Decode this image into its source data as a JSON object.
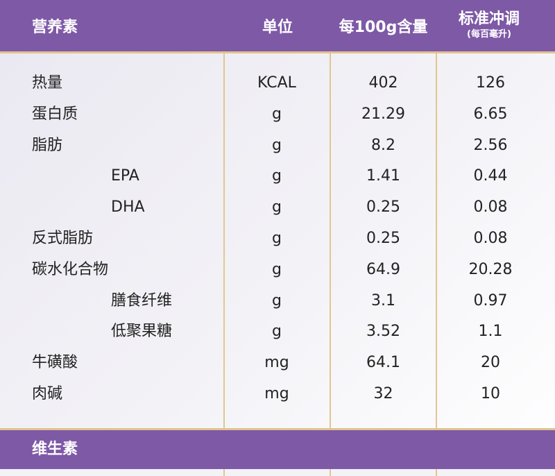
{
  "header": {
    "col_nutrient": "营养素",
    "col_unit": "单位",
    "col_per100": "每100g含量",
    "col_standard": "标准冲调",
    "col_standard_sub": "(每百毫升)"
  },
  "rows": [
    {
      "name": "热量",
      "unit": "KCAL",
      "per100": "402",
      "standard": "126"
    },
    {
      "name": "蛋白质",
      "unit": "g",
      "per100": "21.29",
      "standard": "6.65"
    },
    {
      "name": "脂肪",
      "unit": "g",
      "per100": "8.2",
      "standard": "2.56"
    },
    {
      "name": "EPA",
      "unit": "g",
      "per100": "1.41",
      "standard": "0.44"
    },
    {
      "name": "DHA",
      "unit": "g",
      "per100": "0.25",
      "standard": "0.08"
    },
    {
      "name": "反式脂肪",
      "unit": "g",
      "per100": "0.25",
      "standard": "0.08"
    },
    {
      "name": "碳水化合物",
      "unit": "g",
      "per100": "64.9",
      "standard": "20.28"
    },
    {
      "name": "膳食纤维",
      "unit": "g",
      "per100": "3.1",
      "standard": "0.97"
    },
    {
      "name": "低聚果糖",
      "unit": "g",
      "per100": "3.52",
      "standard": "1.1"
    },
    {
      "name": "牛磺酸",
      "unit": "mg",
      "per100": "64.1",
      "standard": "20"
    },
    {
      "name": "肉碱",
      "unit": "mg",
      "per100": "32",
      "standard": "10"
    }
  ],
  "section": {
    "vitamins": "维生素"
  },
  "colors": {
    "header_bg": "#7e59a6",
    "divider_gold": "#e2c690"
  }
}
